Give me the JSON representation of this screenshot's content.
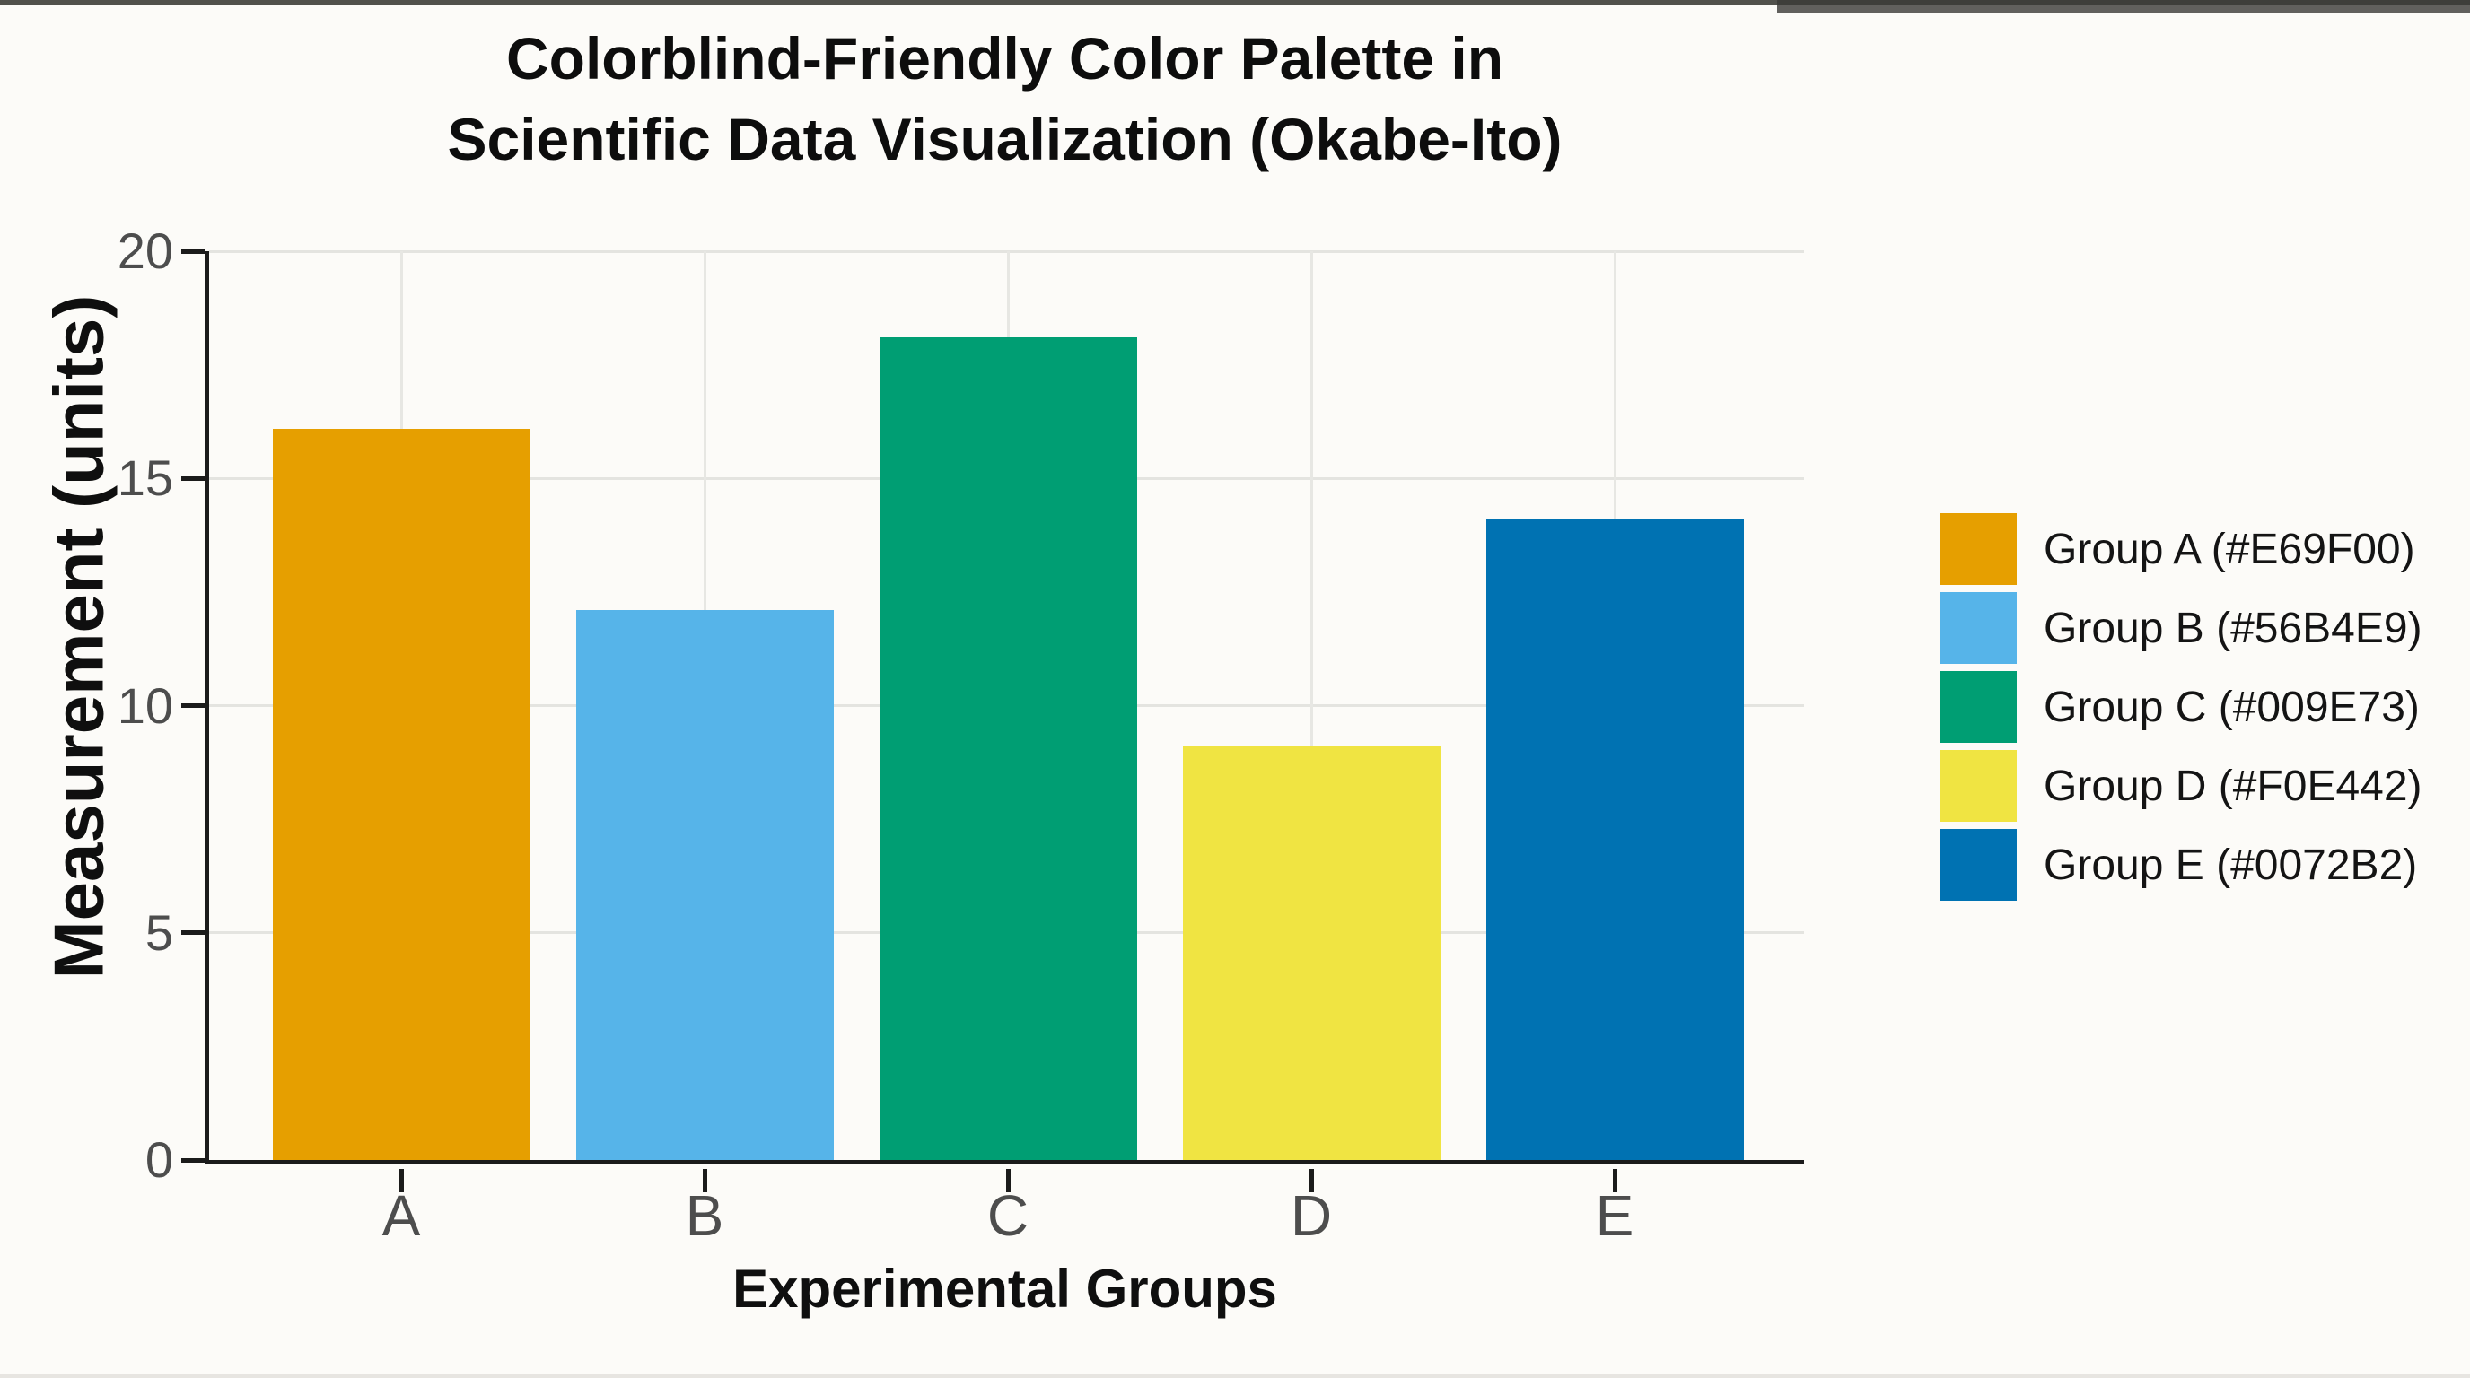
{
  "title": {
    "line1": "Colorblind-Friendly Color Palette in",
    "line2": "Scientific Data Visualization (Okabe-Ito)"
  },
  "axes": {
    "y_label": "Measurement (units)",
    "x_label": "Experimental Groups"
  },
  "legend": [
    {
      "label": "Group A (#E69F00)",
      "color": "#E69F00"
    },
    {
      "label": "Group B (#56B4E9)",
      "color": "#56B4E9"
    },
    {
      "label": "Group C (#009E73)",
      "color": "#009E73"
    },
    {
      "label": "Group D (#F0E442)",
      "color": "#F0E442"
    },
    {
      "label": "Group E (#0072B2)",
      "color": "#0072B2"
    }
  ],
  "chart_data": {
    "type": "bar",
    "title": "Colorblind-Friendly Color Palette in Scientific Data Visualization (Okabe-Ito)",
    "xlabel": "Experimental Groups",
    "ylabel": "Measurement (units)",
    "categories": [
      "A",
      "B",
      "C",
      "D",
      "E"
    ],
    "values": [
      16.1,
      12.1,
      18.1,
      9.1,
      14.1
    ],
    "colors": [
      "#E69F00",
      "#56B4E9",
      "#009E73",
      "#F0E442",
      "#0072B2"
    ],
    "ylim": [
      0,
      20
    ],
    "yticks": [
      0,
      5,
      10,
      15,
      20
    ],
    "grid": true,
    "legend_position": "right",
    "legend_entries": [
      "Group A (#E69F00)",
      "Group B (#56B4E9)",
      "Group C (#009E73)",
      "Group D (#F0E442)",
      "Group E (#0072B2)"
    ]
  }
}
